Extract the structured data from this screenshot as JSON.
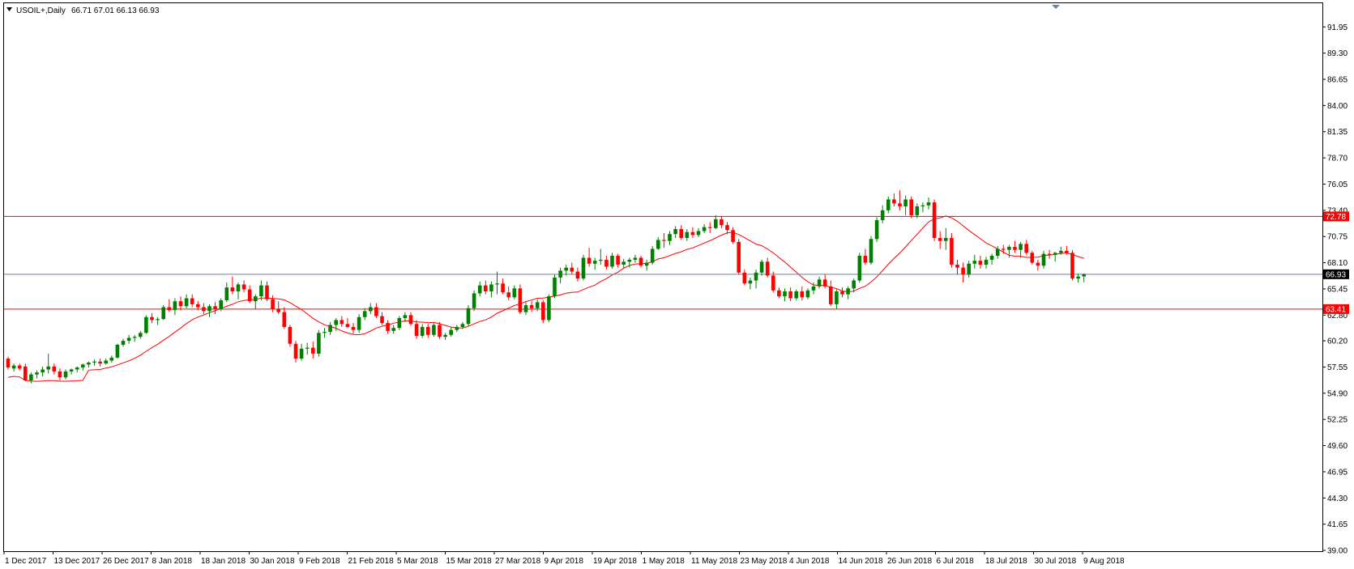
{
  "header": {
    "symbol": "USOIL+,Daily",
    "ohlc": "66.71 67.01 66.13 66.93"
  },
  "colors": {
    "bull": "#008000",
    "bear": "#ff0000",
    "ma": "#ff0000",
    "level": "#ff0000",
    "price_line": "#708090",
    "price_badge_bg": "#000000",
    "level_badge_bg": "#ff0000"
  },
  "chart_data": {
    "type": "candlestick",
    "title": "USOIL+,Daily",
    "indicator": "moving average",
    "ylim": [
      39.0,
      93.2
    ],
    "grid": false,
    "y_ticks": [
      "91.95",
      "89.30",
      "86.65",
      "84.00",
      "81.35",
      "78.70",
      "76.05",
      "73.40",
      "70.75",
      "68.10",
      "65.45",
      "62.80",
      "60.20",
      "57.55",
      "54.90",
      "52.25",
      "49.60",
      "46.95",
      "44.30",
      "41.65",
      "39.00"
    ],
    "x_ticks": [
      "1 Dec 2017",
      "13 Dec 2017",
      "26 Dec 2017",
      "8 Jan 2018",
      "18 Jan 2018",
      "30 Jan 2018",
      "9 Feb 2018",
      "21 Feb 2018",
      "5 Mar 2018",
      "15 Mar 2018",
      "27 Mar 2018",
      "9 Apr 2018",
      "19 Apr 2018",
      "1 May 2018",
      "11 May 2018",
      "23 May 2018",
      "4 Jun 2018",
      "14 Jun 2018",
      "26 Jun 2018",
      "6 Jul 2018",
      "18 Jul 2018",
      "30 Jul 2018",
      "9 Aug 2018"
    ],
    "levels": [
      {
        "value": 72.78,
        "label": "72.78"
      },
      {
        "value": 63.41,
        "label": "63.41"
      }
    ],
    "current_price": {
      "value": 66.93,
      "label": "66.93"
    },
    "candles": [
      [
        58.4,
        58.6,
        57.3,
        57.5
      ],
      [
        57.4,
        57.9,
        57.1,
        57.7
      ],
      [
        57.7,
        57.9,
        57.2,
        57.4
      ],
      [
        57.6,
        57.9,
        56.1,
        56.2
      ],
      [
        56.2,
        57.0,
        55.9,
        56.8
      ],
      [
        56.8,
        57.2,
        56.4,
        57.0
      ],
      [
        57.0,
        57.6,
        56.6,
        57.3
      ],
      [
        57.3,
        58.9,
        56.9,
        57.6
      ],
      [
        57.6,
        57.9,
        56.8,
        57.1
      ],
      [
        57.1,
        57.4,
        56.2,
        56.5
      ],
      [
        56.5,
        57.3,
        56.3,
        57.1
      ],
      [
        57.1,
        57.4,
        56.8,
        57.3
      ],
      [
        57.3,
        57.6,
        57.0,
        57.5
      ],
      [
        57.5,
        57.9,
        57.2,
        57.8
      ],
      [
        57.8,
        58.1,
        57.5,
        58.0
      ],
      [
        58.0,
        58.3,
        57.7,
        58.1
      ],
      [
        58.1,
        58.4,
        57.6,
        57.9
      ],
      [
        57.9,
        58.4,
        57.8,
        58.2
      ],
      [
        58.2,
        58.7,
        58.0,
        58.5
      ],
      [
        58.5,
        59.9,
        58.4,
        59.8
      ],
      [
        59.8,
        60.4,
        59.6,
        60.2
      ],
      [
        60.2,
        60.8,
        59.9,
        60.5
      ],
      [
        60.5,
        60.8,
        60.1,
        60.6
      ],
      [
        60.6,
        61.2,
        60.4,
        61.0
      ],
      [
        61.0,
        62.8,
        60.9,
        62.6
      ],
      [
        62.6,
        63.0,
        62.0,
        62.3
      ],
      [
        62.3,
        62.6,
        61.8,
        62.4
      ],
      [
        62.4,
        63.8,
        62.3,
        63.6
      ],
      [
        63.6,
        64.4,
        63.1,
        63.3
      ],
      [
        63.3,
        64.5,
        62.8,
        64.2
      ],
      [
        64.2,
        64.7,
        63.3,
        63.7
      ],
      [
        63.7,
        64.9,
        63.5,
        64.5
      ],
      [
        64.5,
        64.9,
        63.6,
        63.9
      ],
      [
        63.9,
        64.2,
        63.3,
        63.6
      ],
      [
        63.6,
        64.0,
        62.9,
        63.2
      ],
      [
        63.2,
        63.9,
        62.6,
        63.7
      ],
      [
        63.7,
        64.1,
        62.9,
        63.4
      ],
      [
        63.4,
        64.5,
        63.2,
        64.3
      ],
      [
        64.3,
        66.1,
        64.1,
        65.6
      ],
      [
        65.6,
        66.7,
        64.9,
        65.2
      ],
      [
        65.2,
        66.1,
        64.4,
        65.9
      ],
      [
        65.9,
        66.3,
        65.1,
        65.4
      ],
      [
        65.4,
        65.8,
        64.0,
        64.2
      ],
      [
        64.2,
        64.9,
        63.4,
        64.7
      ],
      [
        64.7,
        66.3,
        64.3,
        65.8
      ],
      [
        65.8,
        66.2,
        64.2,
        64.4
      ],
      [
        64.4,
        64.8,
        63.1,
        63.4
      ],
      [
        63.4,
        64.2,
        62.9,
        63.1
      ],
      [
        63.1,
        63.6,
        61.4,
        61.6
      ],
      [
        61.6,
        61.8,
        59.6,
        59.9
      ],
      [
        59.9,
        60.2,
        58.0,
        58.4
      ],
      [
        58.4,
        59.9,
        58.2,
        59.4
      ],
      [
        59.4,
        60.0,
        58.8,
        59.5
      ],
      [
        59.5,
        60.1,
        58.4,
        58.9
      ],
      [
        58.9,
        61.3,
        58.6,
        61.0
      ],
      [
        61.0,
        61.5,
        60.5,
        61.1
      ],
      [
        61.1,
        62.1,
        60.8,
        61.8
      ],
      [
        61.8,
        62.5,
        61.2,
        62.3
      ],
      [
        62.3,
        62.7,
        61.6,
        61.9
      ],
      [
        61.9,
        62.5,
        61.5,
        61.6
      ],
      [
        61.6,
        62.0,
        60.9,
        61.3
      ],
      [
        61.3,
        62.9,
        61.0,
        62.6
      ],
      [
        62.6,
        63.5,
        62.3,
        63.2
      ],
      [
        63.2,
        64.0,
        62.9,
        63.6
      ],
      [
        63.6,
        64.0,
        62.5,
        62.7
      ],
      [
        62.7,
        63.1,
        61.8,
        62.0
      ],
      [
        62.0,
        62.3,
        60.9,
        61.2
      ],
      [
        61.2,
        61.8,
        60.9,
        61.5
      ],
      [
        61.5,
        62.7,
        61.3,
        62.5
      ],
      [
        62.5,
        63.1,
        62.1,
        62.8
      ],
      [
        62.8,
        63.1,
        61.7,
        61.9
      ],
      [
        61.9,
        62.3,
        60.4,
        60.7
      ],
      [
        60.7,
        61.9,
        60.5,
        61.6
      ],
      [
        61.6,
        61.9,
        60.5,
        60.8
      ],
      [
        60.8,
        62.0,
        60.6,
        61.8
      ],
      [
        61.8,
        62.1,
        60.4,
        60.6
      ],
      [
        60.6,
        61.0,
        60.3,
        60.8
      ],
      [
        60.8,
        61.6,
        60.6,
        61.3
      ],
      [
        61.3,
        61.8,
        61.1,
        61.6
      ],
      [
        61.6,
        62.1,
        61.4,
        61.9
      ],
      [
        61.9,
        63.8,
        61.7,
        63.5
      ],
      [
        63.5,
        65.3,
        63.2,
        65.0
      ],
      [
        65.0,
        66.2,
        64.7,
        65.8
      ],
      [
        65.8,
        66.3,
        64.9,
        65.2
      ],
      [
        65.2,
        66.2,
        64.6,
        65.9
      ],
      [
        65.9,
        67.2,
        64.9,
        66.0
      ],
      [
        66.0,
        66.5,
        64.9,
        65.1
      ],
      [
        65.1,
        65.7,
        64.3,
        64.6
      ],
      [
        64.6,
        65.8,
        64.4,
        65.5
      ],
      [
        65.5,
        65.9,
        62.9,
        63.1
      ],
      [
        63.1,
        64.1,
        62.8,
        63.8
      ],
      [
        63.8,
        64.2,
        63.1,
        63.5
      ],
      [
        63.5,
        64.4,
        63.2,
        64.1
      ],
      [
        64.1,
        64.3,
        62.0,
        62.3
      ],
      [
        62.3,
        64.9,
        62.1,
        64.7
      ],
      [
        64.7,
        66.9,
        64.5,
        66.6
      ],
      [
        66.6,
        67.6,
        66.0,
        67.3
      ],
      [
        67.3,
        67.9,
        66.8,
        67.6
      ],
      [
        67.6,
        68.1,
        66.9,
        67.2
      ],
      [
        67.2,
        67.6,
        66.2,
        66.5
      ],
      [
        66.5,
        68.9,
        66.3,
        68.6
      ],
      [
        68.6,
        69.6,
        67.7,
        68.0
      ],
      [
        68.0,
        68.6,
        67.4,
        68.3
      ],
      [
        68.3,
        69.5,
        67.9,
        68.4
      ],
      [
        68.4,
        68.8,
        67.4,
        67.7
      ],
      [
        67.7,
        69.1,
        67.5,
        68.8
      ],
      [
        68.8,
        69.0,
        67.6,
        67.9
      ],
      [
        67.9,
        68.5,
        67.5,
        68.2
      ],
      [
        68.2,
        68.6,
        67.6,
        68.4
      ],
      [
        68.4,
        68.9,
        68.1,
        68.6
      ],
      [
        68.6,
        68.8,
        67.6,
        67.8
      ],
      [
        67.8,
        68.4,
        67.3,
        68.1
      ],
      [
        68.1,
        69.8,
        67.9,
        69.5
      ],
      [
        69.5,
        70.7,
        69.4,
        70.4
      ],
      [
        70.4,
        71.1,
        69.6,
        70.3
      ],
      [
        70.3,
        71.3,
        69.9,
        71.0
      ],
      [
        71.0,
        71.8,
        70.6,
        71.5
      ],
      [
        71.5,
        71.9,
        70.4,
        70.6
      ],
      [
        70.6,
        71.5,
        70.3,
        71.2
      ],
      [
        71.2,
        71.7,
        70.6,
        70.9
      ],
      [
        70.9,
        71.6,
        70.7,
        71.3
      ],
      [
        71.3,
        72.0,
        71.1,
        71.7
      ],
      [
        71.7,
        72.2,
        71.1,
        71.6
      ],
      [
        71.6,
        72.9,
        71.5,
        72.5
      ],
      [
        72.5,
        72.8,
        71.6,
        71.9
      ],
      [
        71.9,
        72.2,
        71.0,
        71.4
      ],
      [
        71.4,
        71.7,
        70.0,
        70.2
      ],
      [
        70.2,
        70.5,
        66.9,
        67.1
      ],
      [
        67.1,
        67.4,
        65.8,
        66.0
      ],
      [
        66.0,
        66.6,
        65.4,
        66.3
      ],
      [
        66.3,
        67.4,
        65.5,
        67.1
      ],
      [
        67.1,
        68.4,
        66.8,
        68.2
      ],
      [
        68.2,
        68.6,
        66.6,
        66.8
      ],
      [
        66.8,
        67.2,
        65.1,
        65.3
      ],
      [
        65.3,
        65.6,
        64.5,
        64.7
      ],
      [
        64.7,
        65.5,
        64.2,
        65.2
      ],
      [
        65.2,
        65.6,
        64.2,
        64.5
      ],
      [
        64.5,
        65.4,
        64.3,
        65.2
      ],
      [
        65.2,
        65.7,
        64.3,
        64.6
      ],
      [
        64.6,
        65.5,
        64.4,
        65.3
      ],
      [
        65.3,
        66.1,
        64.9,
        65.7
      ],
      [
        65.7,
        66.7,
        65.5,
        66.4
      ],
      [
        66.4,
        66.9,
        65.5,
        65.7
      ],
      [
        65.7,
        66.3,
        63.7,
        63.9
      ],
      [
        63.9,
        65.4,
        63.4,
        65.2
      ],
      [
        65.2,
        65.6,
        64.6,
        64.9
      ],
      [
        64.9,
        65.7,
        64.4,
        65.5
      ],
      [
        65.5,
        66.5,
        65.1,
        66.3
      ],
      [
        66.3,
        69.1,
        66.1,
        68.8
      ],
      [
        68.8,
        69.5,
        67.9,
        68.1
      ],
      [
        68.1,
        70.8,
        67.9,
        70.5
      ],
      [
        70.5,
        72.7,
        70.2,
        72.4
      ],
      [
        72.4,
        73.9,
        72.1,
        73.4
      ],
      [
        73.4,
        74.8,
        73.1,
        74.5
      ],
      [
        74.5,
        75.1,
        73.8,
        74.1
      ],
      [
        74.1,
        75.4,
        73.4,
        73.8
      ],
      [
        73.8,
        74.9,
        72.9,
        74.5
      ],
      [
        74.5,
        74.8,
        72.6,
        72.9
      ],
      [
        72.9,
        74.1,
        72.6,
        73.8
      ],
      [
        73.8,
        74.2,
        73.2,
        73.9
      ],
      [
        73.9,
        74.7,
        73.5,
        74.2
      ],
      [
        74.2,
        74.5,
        70.3,
        70.6
      ],
      [
        70.6,
        71.3,
        69.5,
        70.3
      ],
      [
        70.3,
        71.6,
        69.4,
        70.6
      ],
      [
        70.6,
        71.1,
        67.6,
        67.9
      ],
      [
        67.9,
        68.4,
        66.9,
        67.6
      ],
      [
        67.6,
        68.1,
        66.1,
        66.9
      ],
      [
        66.9,
        68.3,
        66.6,
        68.0
      ],
      [
        68.0,
        68.9,
        67.5,
        68.3
      ],
      [
        68.3,
        68.8,
        67.5,
        67.9
      ],
      [
        67.9,
        68.7,
        67.5,
        68.4
      ],
      [
        68.4,
        69.0,
        67.9,
        68.8
      ],
      [
        68.8,
        69.8,
        68.5,
        69.5
      ],
      [
        69.5,
        69.9,
        69.0,
        69.4
      ],
      [
        69.4,
        69.9,
        68.6,
        69.7
      ],
      [
        69.7,
        70.3,
        69.1,
        69.4
      ],
      [
        69.4,
        70.2,
        68.6,
        70.0
      ],
      [
        70.0,
        70.4,
        68.9,
        69.1
      ],
      [
        69.1,
        69.3,
        67.9,
        68.1
      ],
      [
        68.1,
        68.4,
        67.3,
        67.8
      ],
      [
        67.8,
        69.3,
        67.5,
        69.0
      ],
      [
        69.0,
        69.4,
        68.5,
        68.9
      ],
      [
        68.9,
        69.2,
        68.2,
        69.1
      ],
      [
        69.1,
        69.7,
        68.9,
        69.3
      ],
      [
        69.3,
        69.8,
        68.9,
        69.1
      ],
      [
        69.1,
        69.4,
        66.3,
        66.5
      ],
      [
        66.5,
        67.0,
        66.1,
        66.7
      ],
      [
        66.71,
        67.01,
        66.13,
        66.93
      ]
    ],
    "ma_period": 14
  }
}
